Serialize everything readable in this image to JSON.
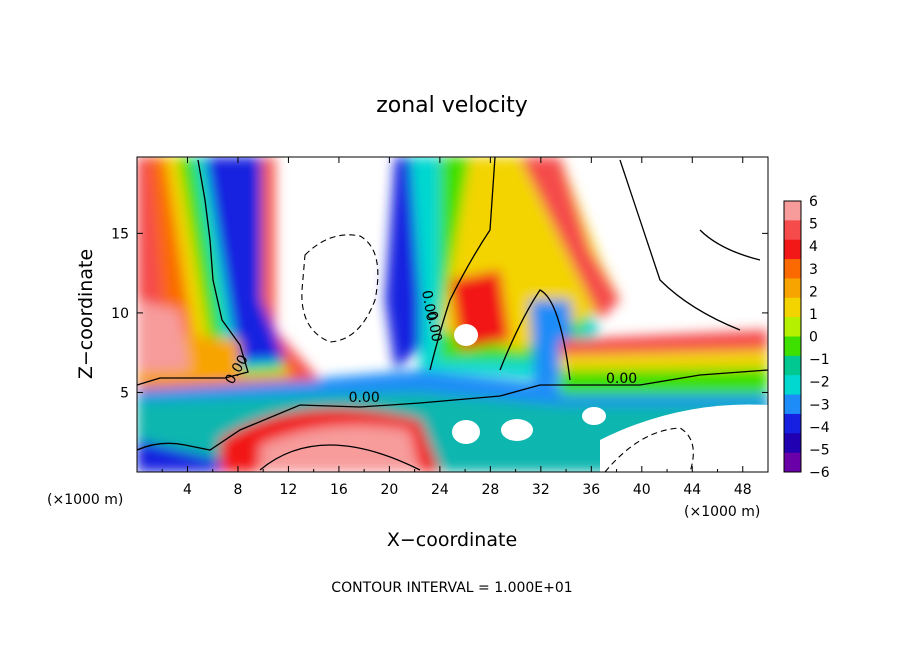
{
  "chart_data": {
    "type": "heatmap",
    "title": "zonal velocity",
    "xlabel": "X−coordinate",
    "ylabel": "Z−coordinate",
    "x_unit_label_left": "(×1000 m)",
    "x_unit_label_right": "(×1000 m)",
    "footer": "CONTOUR INTERVAL = 1.000E+01",
    "xlim": [
      0,
      50
    ],
    "ylim": [
      0,
      19.8
    ],
    "x_ticks": [
      {
        "value": 4,
        "label": "4"
      },
      {
        "value": 8,
        "label": "8"
      },
      {
        "value": 12,
        "label": "12"
      },
      {
        "value": 16,
        "label": "16"
      },
      {
        "value": 20,
        "label": "20"
      },
      {
        "value": 24,
        "label": "24"
      },
      {
        "value": 28,
        "label": "28"
      },
      {
        "value": 32,
        "label": "32"
      },
      {
        "value": 36,
        "label": "36"
      },
      {
        "value": 40,
        "label": "40"
      },
      {
        "value": 44,
        "label": "44"
      },
      {
        "value": 48,
        "label": "48"
      }
    ],
    "y_ticks": [
      {
        "value": 5,
        "label": "5"
      },
      {
        "value": 10,
        "label": "10"
      },
      {
        "value": 15,
        "label": "15"
      }
    ],
    "colorbar": {
      "min": -6,
      "max": 6,
      "labels": [
        "6",
        "5",
        "4",
        "3",
        "2",
        "1",
        "0",
        "−1",
        "−2",
        "−3",
        "−4",
        "−5",
        "−6"
      ],
      "colors": [
        "#f79b9b",
        "#f54b4b",
        "#f21818",
        "#fa6a00",
        "#f8a400",
        "#f3d400",
        "#b4f000",
        "#3ee000",
        "#00c890",
        "#00d8d0",
        "#1d8cf8",
        "#1620e0",
        "#2000b0",
        "#6a00a8"
      ]
    },
    "contour_labels": [
      {
        "x": 8.2,
        "y": 6.3,
        "text": "0.00",
        "rotate": -60
      },
      {
        "x": 22.8,
        "y": 10.4,
        "text": "0.00",
        "rotate": 80
      },
      {
        "x": 23.2,
        "y": 9.1,
        "text": "0.00",
        "rotate": 80
      },
      {
        "x": 18.0,
        "y": 4.4,
        "text": "0.00",
        "rotate": 0
      },
      {
        "x": 38.4,
        "y": 5.6,
        "text": "0.00",
        "rotate": 0
      }
    ]
  }
}
